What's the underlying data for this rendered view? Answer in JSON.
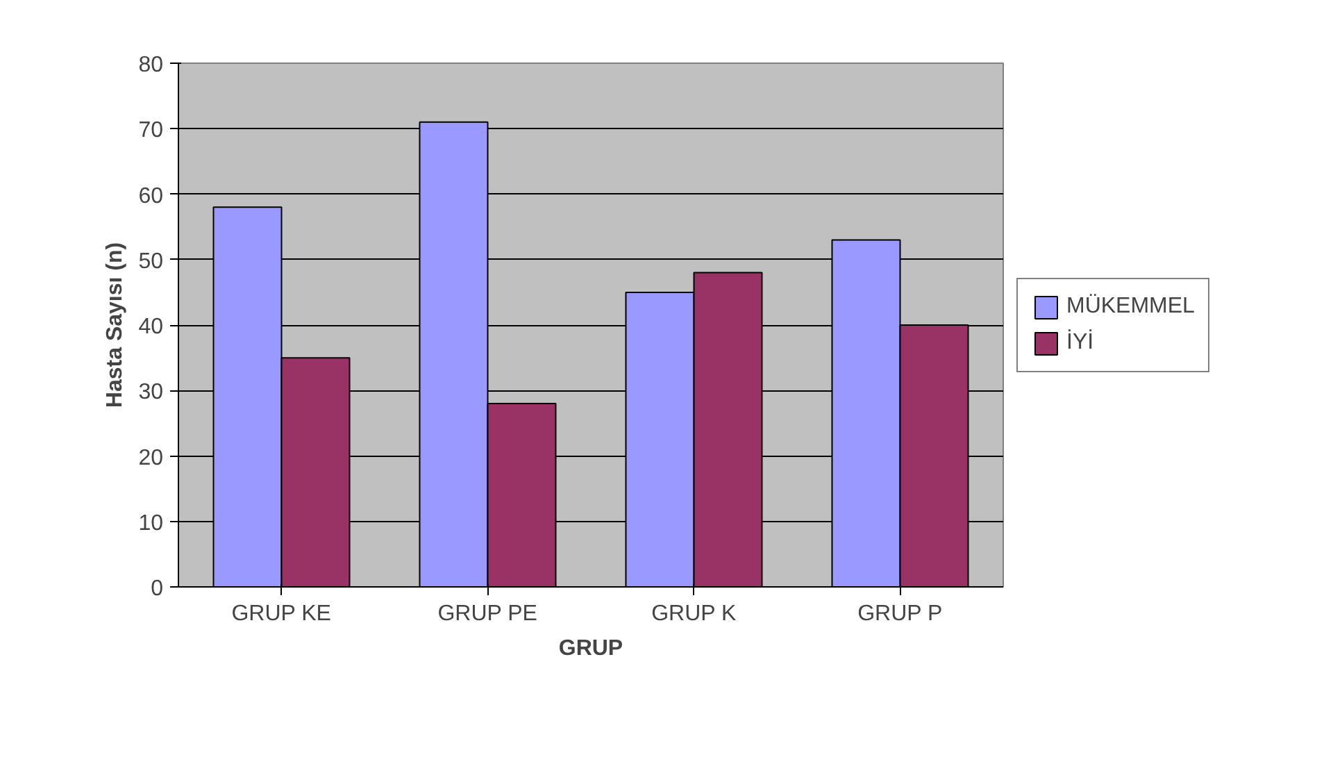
{
  "chart_data": {
    "type": "bar",
    "xlabel": "GRUP",
    "ylabel": "Hasta Sayısı (n)",
    "categories": [
      "GRUP KE",
      "GRUP PE",
      "GRUP K",
      "GRUP P"
    ],
    "series": [
      {
        "name": "MÜKEMMEL",
        "color": "#9999ff",
        "values": [
          58,
          71,
          45,
          53
        ]
      },
      {
        "name": "İYİ",
        "color": "#993366",
        "values": [
          35,
          28,
          48,
          40
        ]
      }
    ],
    "ylim": [
      0,
      80
    ],
    "yticks": [
      0,
      10,
      20,
      30,
      40,
      50,
      60,
      70,
      80
    ],
    "grid": "y",
    "legend": "right"
  }
}
